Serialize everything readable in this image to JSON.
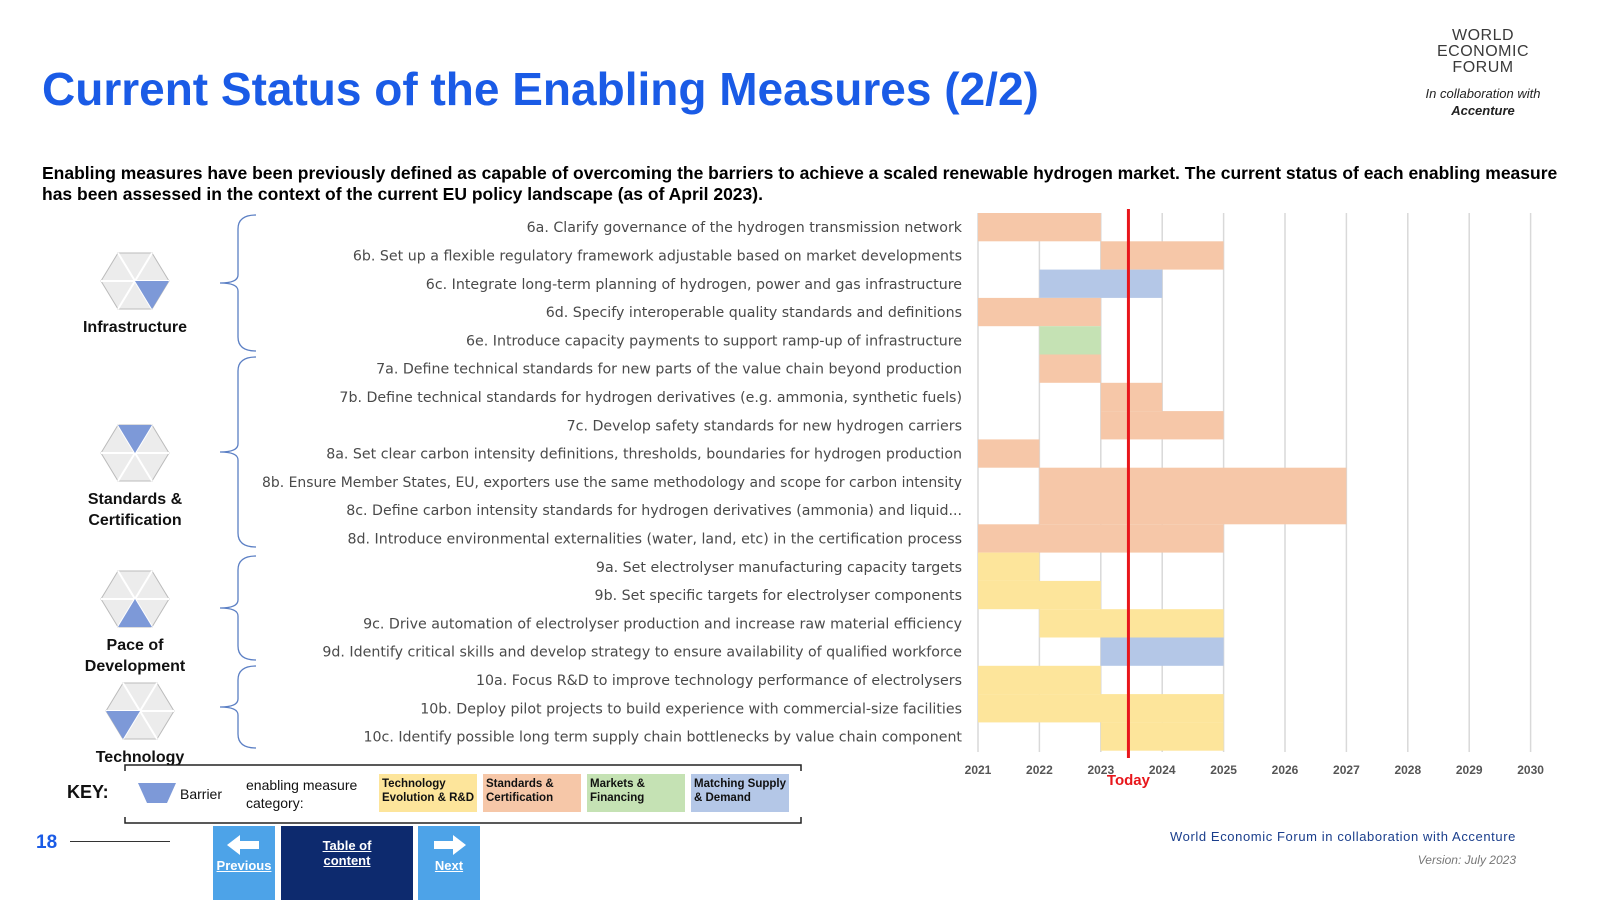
{
  "header": {
    "title": "Current Status of the Enabling Measures (2/2)",
    "subtitle": "Enabling measures have been previously defined as capable of overcoming the barriers to achieve a scaled renewable hydrogen market. The current status of each enabling measure has been assessed in the context of the current EU policy landscape (as of April 2023)."
  },
  "logo": {
    "line1": "WORLD",
    "line2": "ECONOMIC",
    "line3": "FORUM",
    "collab": "In collaboration with",
    "partner": "Accenture"
  },
  "groups": [
    {
      "label": "Infrastructure"
    },
    {
      "label": "Standards & Certification"
    },
    {
      "label": "Pace of Development"
    },
    {
      "label": "Technology"
    }
  ],
  "chart_data": {
    "type": "gantt",
    "years": [
      "2021",
      "2022",
      "2023",
      "2024",
      "2025",
      "2026",
      "2027",
      "2028",
      "2029",
      "2030"
    ],
    "today_label": "Today",
    "today": 2023.45,
    "colors": {
      "technology": "#fde59b",
      "standards": "#f6c7a8",
      "markets": "#c5e2b4",
      "matching": "#b4c7e7",
      "today_line": "#e8161b"
    },
    "tasks": [
      {
        "label": "6a. Clarify governance of the hydrogen transmission network",
        "bars": [
          {
            "start": 2021,
            "end": 2023,
            "category": "standards"
          }
        ]
      },
      {
        "label": "6b. Set up a flexible regulatory framework adjustable based on market developments",
        "bars": [
          {
            "start": 2023,
            "end": 2025,
            "category": "standards"
          }
        ]
      },
      {
        "label": "6c. Integrate long-term planning of hydrogen, power and gas infrastructure",
        "bars": [
          {
            "start": 2022,
            "end": 2024,
            "category": "matching"
          }
        ]
      },
      {
        "label": "6d. Specify interoperable quality standards and definitions",
        "bars": [
          {
            "start": 2021,
            "end": 2023,
            "category": "standards"
          }
        ]
      },
      {
        "label": "6e. Introduce capacity payments to support ramp-up of infrastructure",
        "bars": [
          {
            "start": 2022,
            "end": 2023,
            "category": "markets"
          }
        ]
      },
      {
        "label": "7a. Define technical standards for new parts of the value chain beyond production",
        "bars": [
          {
            "start": 2022,
            "end": 2023,
            "category": "standards"
          }
        ]
      },
      {
        "label": "7b. Define technical standards for hydrogen derivatives (e.g. ammonia, synthetic fuels)",
        "bars": [
          {
            "start": 2023,
            "end": 2024,
            "category": "standards"
          }
        ]
      },
      {
        "label": "7c. Develop safety standards for new hydrogen carriers",
        "bars": [
          {
            "start": 2023,
            "end": 2025,
            "category": "standards"
          }
        ]
      },
      {
        "label": "8a. Set clear carbon intensity definitions, thresholds, boundaries for hydrogen production",
        "bars": [
          {
            "start": 2021,
            "end": 2022,
            "category": "standards"
          }
        ]
      },
      {
        "label": "8b. Ensure Member States, EU, exporters use the same methodology and scope for carbon intensity",
        "bars": [
          {
            "start": 2022,
            "end": 2027,
            "category": "standards"
          }
        ]
      },
      {
        "label": "8c. Define carbon intensity standards for hydrogen derivatives (ammonia) and liquid...",
        "bars": [
          {
            "start": 2022,
            "end": 2027,
            "category": "standards"
          }
        ]
      },
      {
        "label": "8d. Introduce environmental externalities (water, land, etc) in the certification process",
        "bars": [
          {
            "start": 2021,
            "end": 2025,
            "category": "standards"
          }
        ]
      },
      {
        "label": "9a. Set electrolyser manufacturing capacity targets",
        "bars": [
          {
            "start": 2021,
            "end": 2022,
            "category": "technology"
          }
        ]
      },
      {
        "label": "9b. Set specific targets for electrolyser components",
        "bars": [
          {
            "start": 2021,
            "end": 2023,
            "category": "technology"
          }
        ]
      },
      {
        "label": "9c. Drive automation of electrolyser production and increase raw material efficiency",
        "bars": [
          {
            "start": 2022,
            "end": 2025,
            "category": "technology"
          }
        ]
      },
      {
        "label": "9d. Identify critical skills and develop strategy to ensure availability of qualified workforce",
        "bars": [
          {
            "start": 2023,
            "end": 2025,
            "category": "matching"
          }
        ]
      },
      {
        "label": "10a. Focus R&D to improve technology performance of electrolysers",
        "bars": [
          {
            "start": 2021,
            "end": 2023,
            "category": "technology"
          }
        ]
      },
      {
        "label": "10b. Deploy pilot projects to build experience with commercial-size facilities",
        "bars": [
          {
            "start": 2021,
            "end": 2025,
            "category": "technology"
          }
        ]
      },
      {
        "label": "10c. Identify possible long term supply chain bottlenecks by value chain component",
        "bars": [
          {
            "start": 2023,
            "end": 2025,
            "category": "technology"
          }
        ]
      }
    ]
  },
  "key": {
    "title": "KEY:",
    "barrier_label": "Barrier",
    "category_label": "enabling measure category:",
    "categories": [
      {
        "label": "Technology Evolution & R&D",
        "color": "#fde59b"
      },
      {
        "label": "Standards & Certification",
        "color": "#f6c7a8"
      },
      {
        "label": "Markets & Financing",
        "color": "#c5e2b4"
      },
      {
        "label": "Matching Supply & Demand",
        "color": "#b4c7e7"
      }
    ]
  },
  "footer": {
    "page_number": "18",
    "prev_label": "Previous",
    "toc_label": "Table of content",
    "next_label": "Next",
    "credit": "World Economic Forum in collaboration with Accenture",
    "version": "Version: July 2023"
  }
}
